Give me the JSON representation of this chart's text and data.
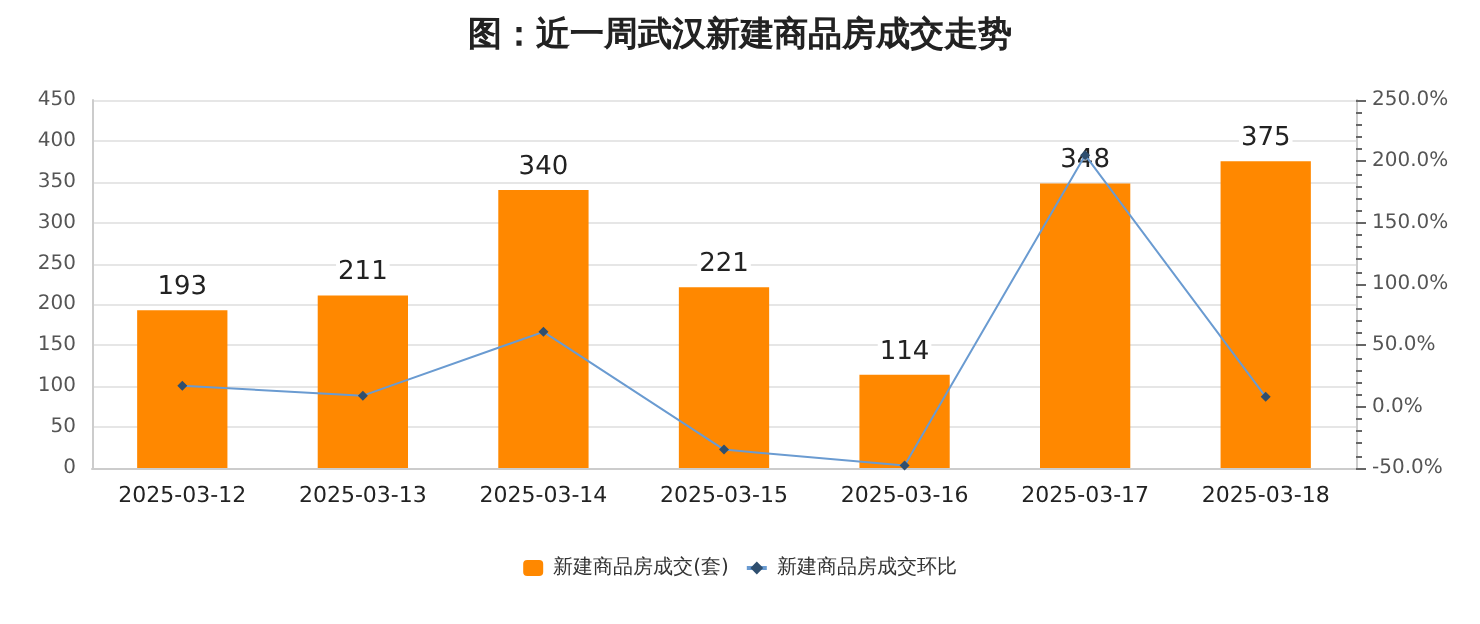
{
  "chart_data": {
    "type": "bar",
    "title": "图：近一周武汉新建商品房成交走势",
    "categories": [
      "2025-03-12",
      "2025-03-13",
      "2025-03-14",
      "2025-03-15",
      "2025-03-16",
      "2025-03-17",
      "2025-03-18"
    ],
    "series": [
      {
        "name": "新建商品房成交(套)",
        "color": "#ff8800",
        "values": [
          193,
          211,
          340,
          221,
          114,
          348,
          375
        ],
        "data_labels": true
      },
      {
        "name": "新建商品房成交环比",
        "type": "line",
        "axis": "y2",
        "color": "#6a9bd1",
        "marker": "diamond",
        "values": [
          17,
          9,
          61,
          -35,
          -48,
          205,
          8
        ]
      }
    ],
    "ylim": [
      0,
      450
    ],
    "yticks": [
      0,
      50,
      100,
      150,
      200,
      250,
      300,
      350,
      400,
      450
    ],
    "y2lim": [
      -50,
      250
    ],
    "y2ticks": [
      {
        "value": -50,
        "label": "-50.0%"
      },
      {
        "value": 0,
        "label": "0.0%"
      },
      {
        "value": 50,
        "label": "50.0%"
      },
      {
        "value": 100,
        "label": "100.0%"
      },
      {
        "value": 150,
        "label": "150.0%"
      },
      {
        "value": 200,
        "label": "200.0%"
      },
      {
        "value": 250,
        "label": "250.0%"
      }
    ],
    "grid": "y",
    "legend": "bottom"
  }
}
